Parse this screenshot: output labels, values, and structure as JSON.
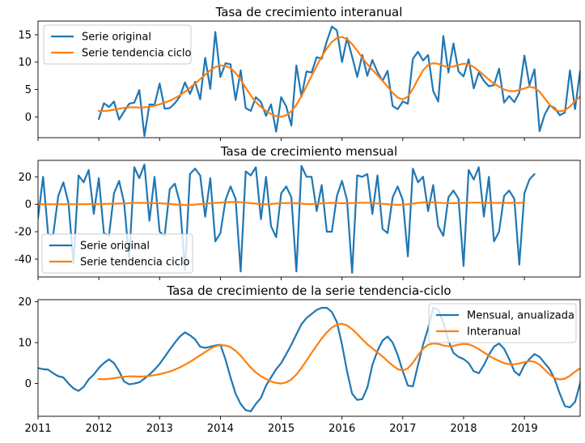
{
  "colors": {
    "blue": "#1f77b4",
    "orange": "#ff7f0e"
  },
  "chart_data": [
    {
      "type": "line",
      "title": "Tasa de crecimiento interanual",
      "xlim": [
        2011.0,
        2019.917
      ],
      "ylim": [
        -3.8,
        17.5
      ],
      "yticks": [
        0,
        5,
        10,
        15
      ],
      "xticks": [
        2011,
        2012,
        2013,
        2014,
        2015,
        2016,
        2017,
        2018,
        2019
      ],
      "show_x_tick_labels": false,
      "legend_position": "upper left",
      "series": [
        {
          "name": "Serie original",
          "color": "blue",
          "start": 2012.0,
          "step": 0.08333,
          "values": [
            -0.4,
            2.5,
            1.8,
            2.8,
            -0.5,
            1.0,
            2.4,
            2.6,
            4.9,
            -3.5,
            2.3,
            2.2,
            6.1,
            1.5,
            1.6,
            2.5,
            3.7,
            6.3,
            4.2,
            6.4,
            3.2,
            10.8,
            5.1,
            15.5,
            7.3,
            9.8,
            9.6,
            3.1,
            8.5,
            1.6,
            1.1,
            3.6,
            2.7,
            0.2,
            2.3,
            -2.7,
            3.6,
            1.9,
            -1.6,
            9.4,
            3.7,
            8.3,
            8.1,
            10.9,
            10.6,
            13.8,
            16.5,
            15.8,
            10.0,
            14.4,
            11.0,
            7.3,
            11.3,
            7.5,
            10.4,
            8.2,
            6.6,
            8.4,
            2.0,
            1.4,
            2.8,
            2.4,
            10.6,
            11.9,
            10.3,
            11.3,
            4.7,
            2.8,
            14.8,
            8.1,
            13.4,
            8.3,
            7.4,
            10.5,
            5.2,
            8.1,
            6.6,
            5.6,
            5.8,
            8.8,
            2.6,
            3.8,
            2.7,
            4.4,
            11.2,
            5.8,
            8.7,
            -2.6,
            0.4,
            2.1,
            1.6,
            0.3,
            0.8,
            8.5,
            1.4,
            8.4
          ]
        },
        {
          "name": "Serie tendencia ciclo",
          "color": "orange",
          "start": 2012.0,
          "step": 0.08333,
          "values": [
            1.1,
            1.05,
            1.15,
            1.3,
            1.5,
            1.65,
            1.75,
            1.75,
            1.7,
            1.75,
            1.85,
            2.05,
            2.3,
            2.6,
            2.95,
            3.4,
            3.95,
            4.6,
            5.3,
            6.1,
            6.9,
            7.7,
            8.5,
            9.1,
            9.4,
            9.3,
            8.9,
            8.0,
            6.8,
            5.3,
            3.9,
            2.7,
            1.8,
            1.1,
            0.5,
            0.15,
            0.0,
            0.3,
            1.0,
            2.2,
            3.8,
            5.6,
            7.5,
            9.3,
            11.0,
            12.5,
            13.7,
            14.4,
            14.6,
            14.2,
            13.3,
            12.1,
            10.8,
            9.6,
            8.6,
            7.6,
            6.6,
            5.5,
            4.4,
            3.5,
            3.2,
            3.7,
            5.1,
            6.9,
            8.5,
            9.5,
            9.8,
            9.7,
            9.3,
            9.1,
            9.2,
            9.5,
            9.7,
            9.6,
            9.1,
            8.4,
            7.6,
            6.8,
            6.1,
            5.5,
            5.0,
            4.7,
            4.7,
            4.9,
            5.2,
            5.5,
            5.3,
            4.6,
            3.4,
            2.2,
            1.3,
            1.0,
            1.2,
            1.9,
            2.9,
            3.7,
            4.2
          ]
        }
      ]
    },
    {
      "type": "line",
      "title": "Tasa de crecimiento mensual",
      "xlim": [
        2011.0,
        2019.917
      ],
      "ylim": [
        -53,
        32
      ],
      "yticks": [
        -40,
        -20,
        0,
        20
      ],
      "xticks": [
        2011,
        2012,
        2013,
        2014,
        2015,
        2016,
        2017,
        2018,
        2019
      ],
      "show_x_tick_labels": false,
      "legend_position": "lower left",
      "series": [
        {
          "name": "Serie original",
          "color": "blue",
          "start": 2011.0,
          "step": 0.08333,
          "values": [
            -10,
            20,
            -22,
            -22,
            6,
            16,
            1,
            -43,
            21,
            16,
            25,
            -7,
            19,
            -21,
            -23,
            8,
            17,
            1,
            -40,
            27,
            19,
            29,
            -12,
            20,
            -20,
            -23,
            11,
            15,
            1,
            -48,
            22,
            26,
            21,
            -9,
            19,
            -27,
            -21,
            3,
            13,
            4,
            -49,
            24,
            21,
            27,
            -11,
            20,
            -16,
            -24,
            8,
            13,
            5,
            -49,
            28,
            20,
            20,
            -5,
            14,
            -20,
            -20,
            6,
            17,
            3,
            -50,
            21,
            20,
            22,
            -7,
            21,
            -18,
            -21,
            5,
            13,
            3,
            -38,
            26,
            16,
            20,
            -5,
            14,
            -16,
            -23,
            5,
            10,
            4,
            -45,
            25,
            18,
            27,
            -9,
            20,
            -27,
            -20,
            6,
            10,
            4,
            -44,
            8,
            18,
            22
          ]
        },
        {
          "name": "Serie tendencia ciclo",
          "color": "orange",
          "start": 2011.0,
          "step": 0.08333,
          "values": [
            0.0,
            0.0,
            0.0,
            0.0,
            0.0,
            0.0,
            0.0,
            0.0,
            0.0,
            0.0,
            0.1,
            0.1,
            0.1,
            0.2,
            0.3,
            0.4,
            0.5,
            0.6,
            0.8,
            1.0,
            1.0,
            1.0,
            0.9,
            0.8,
            0.7,
            0.5,
            0.2,
            -0.1,
            -0.4,
            -0.5,
            -0.4,
            -0.2,
            0.1,
            0.4,
            0.7,
            1.0,
            1.2,
            1.4,
            1.6,
            1.6,
            1.5,
            1.2,
            0.8,
            0.4,
            0.1,
            0.0,
            0.2,
            0.5,
            0.8,
            0.9,
            0.9,
            0.7,
            0.4,
            0.1,
            0.1,
            0.4,
            0.7,
            0.9,
            1.0,
            0.9,
            0.8,
            0.8,
            0.9,
            1.0,
            1.1,
            1.1,
            0.9,
            0.6,
            0.3,
            0.0,
            -0.3,
            -0.4,
            -0.3,
            0.0,
            0.5,
            1.0,
            1.3,
            1.4,
            1.3,
            1.1,
            0.9,
            0.8,
            0.8,
            0.9,
            1.0,
            1.1,
            1.2,
            1.2,
            1.1,
            1.0,
            1.0,
            1.0,
            1.0,
            1.0,
            1.0,
            1.0,
            1.0
          ]
        }
      ]
    },
    {
      "type": "line",
      "title": "Tasa de crecimiento de la serie tendencia-ciclo",
      "xlim": [
        2011.0,
        2019.917
      ],
      "ylim": [
        -8,
        20.5
      ],
      "yticks": [
        0,
        10,
        20
      ],
      "xticks": [
        2011,
        2012,
        2013,
        2014,
        2015,
        2016,
        2017,
        2018,
        2019
      ],
      "xticklabels": [
        "2011",
        "2012",
        "2013",
        "2014",
        "2015",
        "2016",
        "2017",
        "2018",
        "2019"
      ],
      "show_x_tick_labels": true,
      "legend_position": "upper right",
      "series": [
        {
          "name": "Mensual, anualizada",
          "color": "blue",
          "start": 2011.0,
          "step": 0.08333,
          "values": [
            3.8,
            3.5,
            3.4,
            2.5,
            1.8,
            1.5,
            0.0,
            -1.2,
            -1.8,
            -0.8,
            1.0,
            2.2,
            3.8,
            5.0,
            5.9,
            5.0,
            3.0,
            0.5,
            -0.2,
            0.0,
            0.3,
            1.2,
            2.2,
            3.4,
            4.8,
            6.5,
            8.3,
            10.0,
            11.5,
            12.5,
            11.8,
            10.8,
            9.0,
            8.7,
            9.0,
            9.3,
            9.5,
            5.9,
            1.5,
            -2.5,
            -5.0,
            -6.5,
            -6.8,
            -5.0,
            -3.5,
            -0.5,
            1.5,
            3.5,
            5.0,
            7.2,
            9.5,
            12.0,
            14.5,
            16.0,
            17.0,
            18.0,
            18.5,
            18.5,
            17.5,
            15.0,
            9.5,
            3.0,
            -2.5,
            -4.0,
            -3.8,
            -1.0,
            4.5,
            8.0,
            10.5,
            11.5,
            10.0,
            7.0,
            3.0,
            -0.5,
            -0.7,
            4.5,
            9.5,
            13.5,
            18.5,
            18.0,
            15.0,
            10.5,
            7.5,
            6.5,
            6.0,
            5.0,
            3.0,
            2.5,
            4.5,
            7.0,
            9.0,
            9.8,
            8.5,
            6.0,
            3.0,
            2.0,
            4.5,
            6.0,
            7.2,
            6.5,
            5.0,
            3.5,
            1.0,
            -2.5,
            -5.5,
            -5.8,
            -4.5,
            0.0,
            6.0,
            9.5,
            13.0,
            14.5,
            14.0,
            12.0
          ]
        },
        {
          "name": "Interanual",
          "color": "orange",
          "start": 2012.0,
          "step": 0.08333,
          "values": [
            1.1,
            1.05,
            1.15,
            1.3,
            1.5,
            1.65,
            1.75,
            1.75,
            1.7,
            1.75,
            1.85,
            2.05,
            2.3,
            2.6,
            2.95,
            3.4,
            3.95,
            4.6,
            5.3,
            6.1,
            6.9,
            7.7,
            8.5,
            9.1,
            9.4,
            9.3,
            8.9,
            8.0,
            6.8,
            5.3,
            3.9,
            2.7,
            1.8,
            1.1,
            0.5,
            0.15,
            0.0,
            0.3,
            1.0,
            2.2,
            3.8,
            5.6,
            7.5,
            9.3,
            11.0,
            12.5,
            13.7,
            14.4,
            14.6,
            14.2,
            13.3,
            12.1,
            10.8,
            9.6,
            8.6,
            7.6,
            6.6,
            5.5,
            4.4,
            3.5,
            3.2,
            3.7,
            5.1,
            6.9,
            8.5,
            9.5,
            9.8,
            9.7,
            9.3,
            9.1,
            9.2,
            9.5,
            9.7,
            9.6,
            9.1,
            8.4,
            7.6,
            6.8,
            6.1,
            5.5,
            5.0,
            4.7,
            4.7,
            4.9,
            5.2,
            5.5,
            5.3,
            4.6,
            3.4,
            2.2,
            1.3,
            1.0,
            1.2,
            1.9,
            2.9,
            3.7,
            4.2
          ]
        }
      ]
    }
  ]
}
